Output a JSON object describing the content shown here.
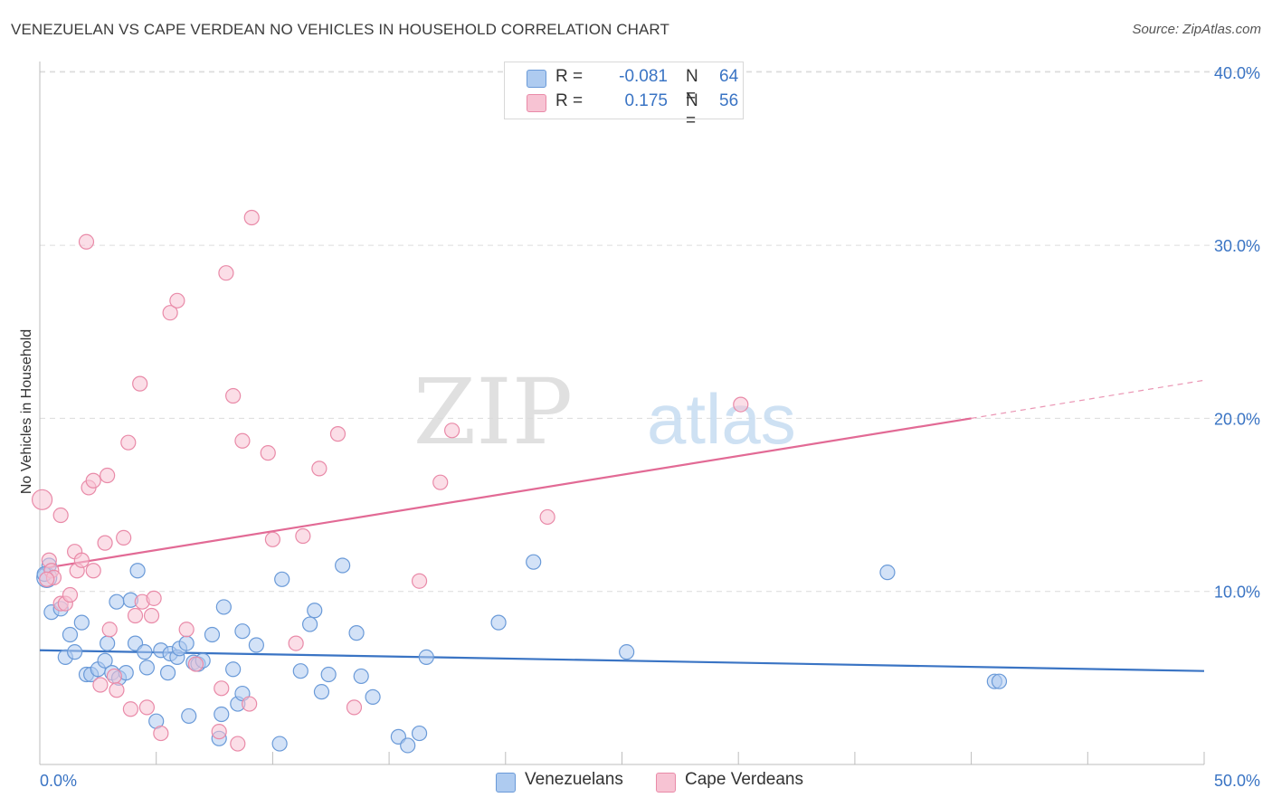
{
  "title": "VENEZUELAN VS CAPE VERDEAN NO VEHICLES IN HOUSEHOLD CORRELATION CHART",
  "source": "Source: ZipAtlas.com",
  "watermark": {
    "zip": "ZIP",
    "atlas": "atlas"
  },
  "legend": {
    "rows": [
      {
        "r_label": "R =",
        "r_value": "-0.081",
        "n_label": "N =",
        "n_value": "64",
        "color": "#aecbf0",
        "stroke": "#6a9ad8"
      },
      {
        "r_label": "R =",
        "r_value": "0.175",
        "n_label": "N =",
        "n_value": "56",
        "color": "#f7c3d3",
        "stroke": "#e98aa8"
      }
    ]
  },
  "bottom_legend": [
    {
      "label": "Venezuelans",
      "color": "#aecbf0",
      "stroke": "#6a9ad8"
    },
    {
      "label": "Cape Verdeans",
      "color": "#f7c3d3",
      "stroke": "#e98aa8"
    }
  ],
  "chart_data": {
    "type": "scatter",
    "title": "VENEZUELAN VS CAPE VERDEAN NO VEHICLES IN HOUSEHOLD CORRELATION CHART",
    "xlabel": "",
    "ylabel": "No Vehicles in Household",
    "xlim": [
      0,
      50
    ],
    "ylim": [
      0,
      42
    ],
    "x_tick_labels": [
      "0.0%",
      "50.0%"
    ],
    "y_ticks": [
      10,
      20,
      30,
      40
    ],
    "y_tick_labels": [
      "10.0%",
      "20.0%",
      "30.0%",
      "40.0%"
    ],
    "grid": true,
    "colors": {
      "venezuelans": "#3a74c4",
      "cape_verdeans": "#e26a95",
      "tick_text": "#3a74c4"
    },
    "series": [
      {
        "name": "Venezuelans",
        "fill": "#aecbf0",
        "stroke": "#6a9ad8",
        "trend": {
          "x": [
            0,
            50
          ],
          "y": [
            6.6,
            5.4
          ]
        },
        "points": [
          [
            0.3,
            10.8
          ],
          [
            0.4,
            11.5
          ],
          [
            0.5,
            8.8
          ],
          [
            0.9,
            9.0
          ],
          [
            1.1,
            6.2
          ],
          [
            1.3,
            7.5
          ],
          [
            1.5,
            6.5
          ],
          [
            1.8,
            8.2
          ],
          [
            2.0,
            5.2
          ],
          [
            2.2,
            5.2
          ],
          [
            2.5,
            5.5
          ],
          [
            2.8,
            6.0
          ],
          [
            2.9,
            7.0
          ],
          [
            3.1,
            5.3
          ],
          [
            3.3,
            9.4
          ],
          [
            3.4,
            5.0
          ],
          [
            3.7,
            5.3
          ],
          [
            3.9,
            9.5
          ],
          [
            4.1,
            7.0
          ],
          [
            4.2,
            11.2
          ],
          [
            4.5,
            6.5
          ],
          [
            4.6,
            5.6
          ],
          [
            5.0,
            2.5
          ],
          [
            5.2,
            6.6
          ],
          [
            5.5,
            5.3
          ],
          [
            5.6,
            6.4
          ],
          [
            5.9,
            6.2
          ],
          [
            6.0,
            6.7
          ],
          [
            6.3,
            7.0
          ],
          [
            6.4,
            2.8
          ],
          [
            6.6,
            5.9
          ],
          [
            6.8,
            5.8
          ],
          [
            7.0,
            6.0
          ],
          [
            7.4,
            7.5
          ],
          [
            7.7,
            1.5
          ],
          [
            7.8,
            2.9
          ],
          [
            7.9,
            9.1
          ],
          [
            8.3,
            5.5
          ],
          [
            8.5,
            3.5
          ],
          [
            8.7,
            4.1
          ],
          [
            8.7,
            7.7
          ],
          [
            9.3,
            6.9
          ],
          [
            10.3,
            1.2
          ],
          [
            10.4,
            10.7
          ],
          [
            11.2,
            5.4
          ],
          [
            11.6,
            8.1
          ],
          [
            11.8,
            8.9
          ],
          [
            12.1,
            4.2
          ],
          [
            12.4,
            5.2
          ],
          [
            13.0,
            11.5
          ],
          [
            13.6,
            7.6
          ],
          [
            13.8,
            5.1
          ],
          [
            14.3,
            3.9
          ],
          [
            15.4,
            1.6
          ],
          [
            15.8,
            1.1
          ],
          [
            16.3,
            1.8
          ],
          [
            16.6,
            6.2
          ],
          [
            19.7,
            8.2
          ],
          [
            21.2,
            11.7
          ],
          [
            25.2,
            6.5
          ],
          [
            36.4,
            11.1
          ],
          [
            41.0,
            4.8
          ],
          [
            41.2,
            4.8
          ],
          [
            0.2,
            11.0
          ]
        ]
      },
      {
        "name": "Cape Verdeans",
        "fill": "#f7c3d3",
        "stroke": "#e98aa8",
        "trend": {
          "x": [
            0,
            40
          ],
          "y": [
            11.3,
            20.0
          ]
        },
        "trend_extension": {
          "x": [
            40,
            50
          ],
          "y": [
            20.0,
            22.2
          ]
        },
        "points": [
          [
            0.1,
            15.3
          ],
          [
            0.4,
            11.8
          ],
          [
            0.5,
            11.2
          ],
          [
            0.6,
            10.8
          ],
          [
            0.9,
            14.4
          ],
          [
            0.9,
            9.3
          ],
          [
            1.1,
            9.3
          ],
          [
            1.3,
            9.8
          ],
          [
            1.5,
            12.3
          ],
          [
            1.6,
            11.2
          ],
          [
            1.8,
            11.8
          ],
          [
            2.0,
            30.2
          ],
          [
            2.1,
            16.0
          ],
          [
            2.3,
            11.2
          ],
          [
            2.3,
            16.4
          ],
          [
            2.6,
            4.6
          ],
          [
            2.8,
            12.8
          ],
          [
            2.9,
            16.7
          ],
          [
            3.0,
            7.8
          ],
          [
            3.2,
            5.1
          ],
          [
            3.3,
            4.3
          ],
          [
            3.6,
            13.1
          ],
          [
            3.8,
            18.6
          ],
          [
            3.9,
            3.2
          ],
          [
            4.1,
            8.6
          ],
          [
            4.3,
            22.0
          ],
          [
            4.4,
            9.4
          ],
          [
            4.6,
            3.3
          ],
          [
            4.8,
            8.6
          ],
          [
            4.9,
            9.6
          ],
          [
            5.2,
            1.8
          ],
          [
            5.6,
            26.1
          ],
          [
            5.9,
            26.8
          ],
          [
            6.3,
            7.8
          ],
          [
            6.7,
            5.8
          ],
          [
            7.7,
            1.9
          ],
          [
            7.8,
            4.4
          ],
          [
            8.0,
            28.4
          ],
          [
            8.3,
            21.3
          ],
          [
            8.5,
            1.2
          ],
          [
            8.7,
            18.7
          ],
          [
            9.0,
            3.5
          ],
          [
            9.1,
            31.6
          ],
          [
            9.8,
            18.0
          ],
          [
            10.0,
            13.0
          ],
          [
            11.0,
            7.0
          ],
          [
            11.3,
            13.2
          ],
          [
            12.0,
            17.1
          ],
          [
            12.8,
            19.1
          ],
          [
            13.5,
            3.3
          ],
          [
            16.3,
            10.6
          ],
          [
            17.2,
            16.3
          ],
          [
            17.7,
            19.3
          ],
          [
            21.8,
            14.3
          ],
          [
            30.1,
            20.8
          ],
          [
            0.3,
            10.7
          ]
        ]
      }
    ]
  }
}
